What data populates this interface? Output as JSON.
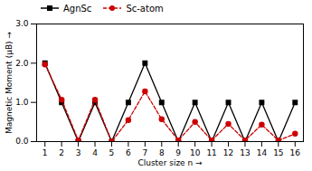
{
  "chart_data": {
    "type": "line",
    "x": [
      1,
      2,
      3,
      4,
      5,
      6,
      7,
      8,
      9,
      10,
      11,
      12,
      13,
      14,
      15,
      16
    ],
    "series": [
      {
        "name": "AgnSc",
        "color": "#000000",
        "marker": "square",
        "line_style": "solid",
        "values": [
          2.0,
          1.0,
          0.0,
          1.0,
          0.0,
          1.0,
          2.0,
          1.0,
          0.0,
          1.0,
          0.0,
          1.0,
          0.0,
          1.0,
          0.0,
          1.0
        ]
      },
      {
        "name": "Sc-atom",
        "color": "#cc0000",
        "marker": "circle",
        "line_style": "dashed",
        "values": [
          1.97,
          1.07,
          0.03,
          1.07,
          0.0,
          0.55,
          1.28,
          0.57,
          0.03,
          0.5,
          0.03,
          0.45,
          0.03,
          0.43,
          0.03,
          0.2
        ]
      }
    ],
    "xlabel": "Cluster size n",
    "ylabel": "Magnetic Moment (μB)",
    "xlim": [
      0.5,
      16.5
    ],
    "ylim": [
      0.0,
      3.0
    ],
    "xticks": [
      1,
      2,
      3,
      4,
      5,
      6,
      7,
      8,
      9,
      10,
      11,
      12,
      13,
      14,
      15,
      16
    ],
    "yticks": [
      0,
      1,
      2,
      3
    ],
    "legend": "upper left",
    "grid": false
  }
}
